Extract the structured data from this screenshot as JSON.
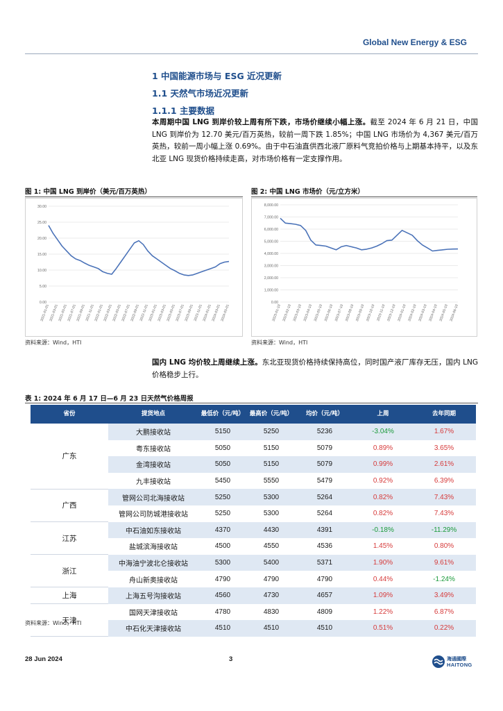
{
  "header": {
    "title": "Global New Energy & ESG"
  },
  "section": {
    "h1": "1 中国能源市场与 ESG 近况更新",
    "h2": "1.1 天然气市场近况更新",
    "h3": "1.1.1 主要数据"
  },
  "para1": {
    "bold": "本周期中国 LNG 到岸价较上周有所下跌，市场价继续小幅上涨。",
    "text": "截至 2024 年 6 月 21 日，中国 LNG 到岸价为 12.70 美元/百万英热，较前一周下跌 1.85%；中国 LNG 市场价为 4,367 美元/百万英热，较前一周小幅上涨 0.69%。由于中石油直供西北液厂原料气竞拍价格与上期基本持平，以及东北亚 LNG 现货价格持续走高，对市场价格有一定支撑作用。"
  },
  "figure1": {
    "title": "图 1:  中国 LNG 到岸价（美元/百万英热）",
    "source": "资料来源：Wind，HTI"
  },
  "figure2": {
    "title": "图 2:  中国 LNG 市场价（元/立方米）",
    "source": "资料来源：Wind，HTI"
  },
  "chart_data": [
    {
      "type": "line",
      "title": "中国 LNG 到岸价（美元/百万英热）",
      "ylim": [
        0,
        30
      ],
      "yticks": [
        "0.00",
        "5.00",
        "10.00",
        "15.00",
        "20.00",
        "25.00",
        "30.00"
      ],
      "xticks": [
        "2021-01-01",
        "2021-03-01",
        "2021-05-01",
        "2021-07-01",
        "2021-09-01",
        "2021-11-01",
        "2022-01-01",
        "2022-03-01",
        "2022-05-01",
        "2022-07-01",
        "2022-09-01",
        "2022-11-01",
        "2023-01-01",
        "2023-03-01",
        "2023-05-01",
        "2023-07-01",
        "2023-09-01",
        "2023-11-01",
        "2024-01-01",
        "2024-03-01",
        "2024-05-01"
      ],
      "x": [
        0,
        1,
        2,
        3,
        4,
        5,
        6,
        7,
        8,
        9,
        10,
        11,
        12,
        13,
        14,
        15,
        16,
        17,
        18,
        19,
        20,
        21,
        22,
        23,
        24,
        25,
        26,
        27,
        28,
        29,
        30,
        31,
        32,
        33,
        34,
        35,
        36,
        37,
        38,
        39,
        40
      ],
      "series": [
        {
          "color": "#4a72b8",
          "values": [
            24.0,
            21.5,
            19.5,
            17.5,
            16.0,
            14.5,
            13.5,
            13.0,
            12.2,
            11.5,
            11.0,
            10.5,
            9.5,
            9.0,
            8.7,
            10.5,
            12.5,
            14.5,
            16.5,
            18.5,
            19.2,
            18.0,
            16.0,
            14.5,
            13.5,
            12.5,
            11.5,
            10.5,
            9.8,
            9.0,
            8.5,
            8.3,
            8.5,
            9.0,
            9.5,
            10.0,
            10.5,
            11.0,
            12.0,
            12.5,
            12.7
          ]
        }
      ]
    },
    {
      "type": "line",
      "title": "中国 LNG 市场价（元/立方米）",
      "ylim": [
        0,
        8000
      ],
      "yticks": [
        "0.00",
        "1,000.00",
        "2,000.00",
        "3,000.00",
        "4,000.00",
        "5,000.00",
        "6,000.00",
        "7,000.00",
        "8,000.00"
      ],
      "xticks": [
        "2023-01-10",
        "2023-02-10",
        "2023-03-10",
        "2023-04-10",
        "2023-05-10",
        "2023-06-10",
        "2023-07-10",
        "2023-08-10",
        "2023-09-10",
        "2023-10-10",
        "2023-11-10",
        "2023-12-10",
        "2024-01-10",
        "2024-02-10",
        "2024-03-10",
        "2024-04-10",
        "2024-05-10",
        "2024-06-10"
      ],
      "x": [
        0,
        1,
        2,
        3,
        4,
        5,
        6,
        7,
        8,
        9,
        10,
        11,
        12,
        13,
        14,
        15,
        16,
        17,
        18,
        19,
        20,
        21,
        22,
        23,
        24,
        25,
        26,
        27,
        28,
        29,
        30,
        31,
        32,
        33,
        34,
        35
      ],
      "series": [
        {
          "color": "#4a72b8",
          "values": [
            6900,
            6500,
            6450,
            6400,
            6300,
            5900,
            5100,
            4700,
            4650,
            4600,
            4450,
            4300,
            4550,
            4650,
            4550,
            4450,
            4300,
            4350,
            4450,
            4600,
            4800,
            5050,
            5100,
            5500,
            5900,
            5700,
            5500,
            5050,
            4700,
            4450,
            4200,
            4250,
            4300,
            4340,
            4360,
            4367
          ]
        }
      ]
    }
  ],
  "para2": {
    "bold": "国内 LNG 均价较上周继续上涨。",
    "text": "东北亚现货价格持续保持高位，同时国产液厂库存无压，国内 LNG 价格稳步上行。"
  },
  "table": {
    "title": "表 1:  2024 年 6 月 17 日—6 月 23 日天然气价格周报",
    "headers": [
      "省份",
      "提货地点",
      "最低价（元/吨）",
      "最高价（元/吨）",
      "均价（元/吨）",
      "上周",
      "去年同期"
    ],
    "rows": [
      {
        "province": "广东",
        "span": 4,
        "site": "大鹏接收站",
        "min": "5150",
        "max": "5250",
        "avg": "5236",
        "wk": "-3.04%",
        "yr": "1.67%"
      },
      {
        "site": "粤东接收站",
        "min": "5050",
        "max": "5150",
        "avg": "5079",
        "wk": "0.89%",
        "yr": "3.65%"
      },
      {
        "site": "金湾接收站",
        "min": "5050",
        "max": "5150",
        "avg": "5079",
        "wk": "0.99%",
        "yr": "2.61%"
      },
      {
        "site": "九丰接收站",
        "min": "5450",
        "max": "5550",
        "avg": "5479",
        "wk": "0.92%",
        "yr": "6.39%"
      },
      {
        "province": "广西",
        "span": 2,
        "site": "管网公司北海接收站",
        "min": "5250",
        "max": "5300",
        "avg": "5264",
        "wk": "0.82%",
        "yr": "7.43%"
      },
      {
        "site": "管网公司防城港接收站",
        "min": "5250",
        "max": "5300",
        "avg": "5264",
        "wk": "0.82%",
        "yr": "7.43%"
      },
      {
        "province": "江苏",
        "span": 2,
        "site": "中石油如东接收站",
        "min": "4370",
        "max": "4430",
        "avg": "4391",
        "wk": "-0.18%",
        "yr": "-11.29%"
      },
      {
        "site": "盐城滨海接收站",
        "min": "4500",
        "max": "4550",
        "avg": "4536",
        "wk": "1.45%",
        "yr": "0.80%"
      },
      {
        "province": "浙江",
        "span": 2,
        "site": "中海油宁波北仑接收站",
        "min": "5300",
        "max": "5400",
        "avg": "5371",
        "wk": "1.90%",
        "yr": "9.61%"
      },
      {
        "site": "舟山新奥接收站",
        "min": "4790",
        "max": "4790",
        "avg": "4790",
        "wk": "0.44%",
        "yr": "-1.24%"
      },
      {
        "province": "上海",
        "span": 1,
        "site": "上海五号沟接收站",
        "min": "4560",
        "max": "4730",
        "avg": "4657",
        "wk": "1.09%",
        "yr": "3.49%"
      },
      {
        "province": "天津",
        "span": 2,
        "site": "国网天津接收站",
        "min": "4780",
        "max": "4830",
        "avg": "4809",
        "wk": "1.22%",
        "yr": "6.87%"
      },
      {
        "site": "中石化天津接收站",
        "min": "4510",
        "max": "4510",
        "avg": "4510",
        "wk": "0.51%",
        "yr": "0.22%"
      }
    ],
    "source": "资料来源：Wind，HTI"
  },
  "footer": {
    "date": "28 Jun 2024",
    "page": "3",
    "logo_cn": "海通國際",
    "logo_en": "HAITONG"
  },
  "colors": {
    "brand": "#1f4e8c",
    "positive": "#d63a3a",
    "negative": "#1a9a3a",
    "row_shade": "#dfe8f3"
  }
}
